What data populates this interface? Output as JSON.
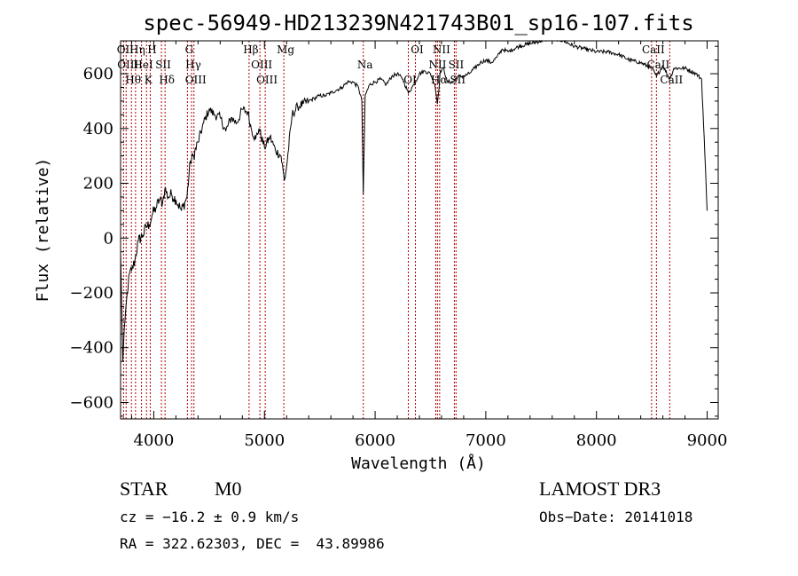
{
  "chart_data": {
    "type": "line",
    "title": "spec-56949-HD213239N421743B01_sp16-107.fits",
    "xlabel": "Wavelength (Å)",
    "ylabel": "Flux (relative)",
    "xlim": [
      3700,
      9100
    ],
    "ylim": [
      -660,
      720
    ],
    "xticks": [
      4000,
      5000,
      6000,
      7000,
      8000,
      9000
    ],
    "yticks": [
      -600,
      -400,
      -200,
      0,
      200,
      400,
      600
    ],
    "grid": false,
    "series": [
      {
        "x": [
          3700,
          3720,
          3740,
          3760,
          3780,
          3800,
          3830,
          3860,
          3900,
          3930,
          3960,
          3990,
          4020,
          4050,
          4080,
          4100,
          4130,
          4160,
          4200,
          4250,
          4300,
          4330,
          4360,
          4400,
          4450,
          4500,
          4550,
          4600,
          4650,
          4700,
          4750,
          4800,
          4850,
          4880,
          4920,
          4950,
          5000,
          5050,
          5100,
          5150,
          5180,
          5200,
          5250,
          5300,
          5350,
          5400,
          5450,
          5500,
          5550,
          5600,
          5650,
          5700,
          5750,
          5800,
          5850,
          5880,
          5893,
          5910,
          5950,
          6000,
          6050,
          6100,
          6150,
          6200,
          6250,
          6300,
          6350,
          6400,
          6450,
          6500,
          6540,
          6563,
          6590,
          6620,
          6650,
          6700,
          6750,
          6800,
          6850,
          6900,
          6950,
          7000,
          7050,
          7100,
          7150,
          7200,
          7300,
          7400,
          7500,
          7600,
          7700,
          7800,
          7900,
          8000,
          8100,
          8200,
          8300,
          8400,
          8500,
          8542,
          8600,
          8662,
          8700,
          8800,
          8900,
          8950,
          8980,
          9000
        ],
        "y": [
          -50,
          -450,
          -300,
          -200,
          -130,
          -120,
          -80,
          -10,
          10,
          40,
          50,
          90,
          110,
          140,
          130,
          180,
          150,
          160,
          140,
          100,
          150,
          280,
          300,
          350,
          420,
          470,
          450,
          440,
          390,
          440,
          420,
          470,
          460,
          400,
          360,
          400,
          330,
          370,
          320,
          300,
          210,
          260,
          450,
          480,
          490,
          500,
          510,
          520,
          520,
          530,
          540,
          550,
          570,
          570,
          550,
          500,
          160,
          520,
          560,
          570,
          580,
          560,
          590,
          600,
          580,
          530,
          560,
          600,
          610,
          600,
          560,
          490,
          610,
          620,
          570,
          570,
          590,
          590,
          600,
          620,
          640,
          650,
          640,
          660,
          690,
          680,
          700,
          710,
          720,
          730,
          720,
          700,
          690,
          680,
          680,
          670,
          650,
          640,
          620,
          590,
          630,
          580,
          620,
          620,
          600,
          580,
          300,
          100
        ]
      }
    ],
    "line_markers": [
      {
        "wavelength": 3727,
        "label": "OII"
      },
      {
        "wavelength": 3750,
        "label": "OIII"
      },
      {
        "wavelength": 3798,
        "label": "Hθ"
      },
      {
        "wavelength": 3835,
        "label": "Hη"
      },
      {
        "wavelength": 3889,
        "label": "HeI"
      },
      {
        "wavelength": 3934,
        "label": "K"
      },
      {
        "wavelength": 3968,
        "label": "H"
      },
      {
        "wavelength": 4069,
        "label": "SII"
      },
      {
        "wavelength": 4102,
        "label": "Hδ"
      },
      {
        "wavelength": 4304,
        "label": "G"
      },
      {
        "wavelength": 4341,
        "label": "Hγ"
      },
      {
        "wavelength": 4363,
        "label": "OIII"
      },
      {
        "wavelength": 4861,
        "label": "Hβ"
      },
      {
        "wavelength": 4959,
        "label": "OIII"
      },
      {
        "wavelength": 5007,
        "label": "OIII"
      },
      {
        "wavelength": 5175,
        "label": "Mg"
      },
      {
        "wavelength": 5893,
        "label": "Na"
      },
      {
        "wavelength": 6300,
        "label": "OI"
      },
      {
        "wavelength": 6364,
        "label": "OI"
      },
      {
        "wavelength": 6548,
        "label": "NII"
      },
      {
        "wavelength": 6563,
        "label": "Hα"
      },
      {
        "wavelength": 6583,
        "label": "NII"
      },
      {
        "wavelength": 6716,
        "label": "SII"
      },
      {
        "wavelength": 6731,
        "label": "SII"
      },
      {
        "wavelength": 8498,
        "label": "CaII"
      },
      {
        "wavelength": 8542,
        "label": "CaII"
      },
      {
        "wavelength": 8662,
        "label": "CaII"
      }
    ]
  },
  "info": {
    "object_class": "STAR",
    "subclass": "M0",
    "survey": "LAMOST DR3",
    "redshift": "cz = −16.2 ± 0.9 km/s",
    "obs_date": "Obs−Date: 20141018",
    "coords": "RA = 322.62303, DEC =  43.89986"
  },
  "colors": {
    "line_marker": "#b00000",
    "spectrum": "#000000"
  }
}
